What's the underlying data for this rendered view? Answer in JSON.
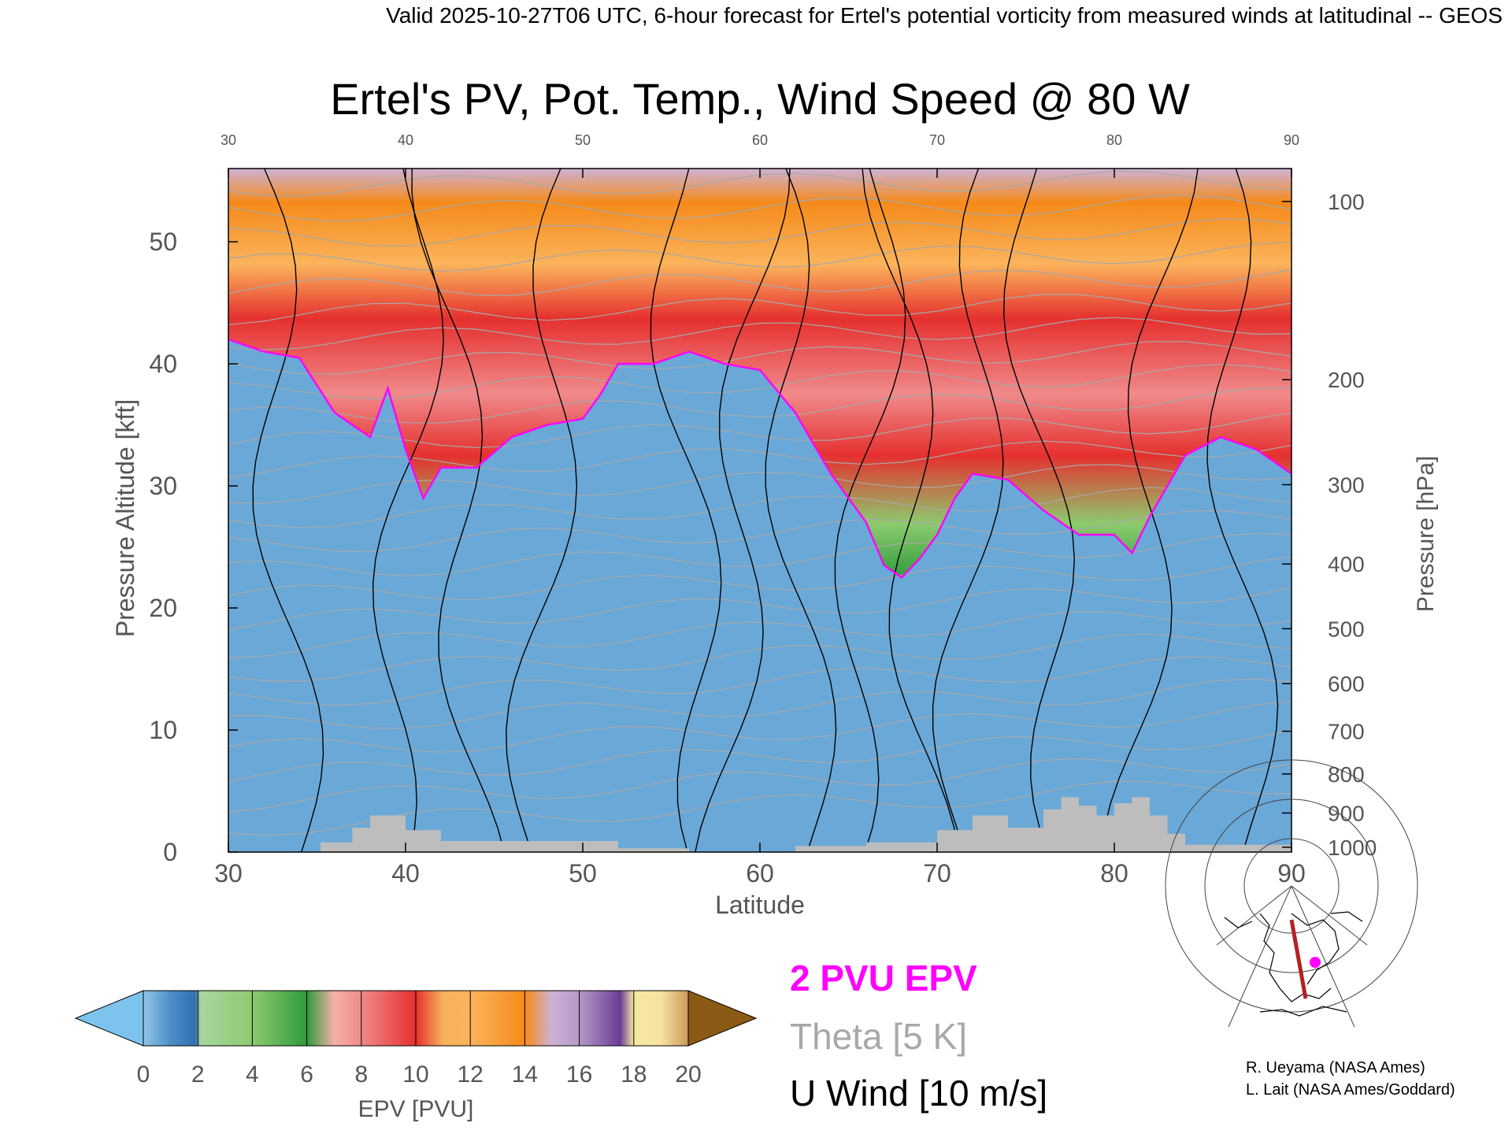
{
  "header": {
    "valid_line": "Valid 2025-10-27T06 UTC, 6-hour forecast for Ertel's potential vorticity from measured winds at latitudinal -- GEOS"
  },
  "chart_data": {
    "type": "heatmap",
    "title": "Ertel's PV, Pot. Temp., Wind Speed @ 80 W",
    "xlabel": "Latitude",
    "ylabel": "Pressure Altitude [kft]",
    "y2label": "Pressure [hPa]",
    "xlim": [
      30,
      90
    ],
    "ylim": [
      0,
      56
    ],
    "x_ticks": [
      30,
      40,
      50,
      60,
      70,
      80,
      90
    ],
    "y_ticks": [
      0,
      10,
      20,
      30,
      40,
      50
    ],
    "pressure_ticks": [
      {
        "label": "100",
        "kft": 53.3
      },
      {
        "label": "200",
        "kft": 38.7
      },
      {
        "label": "300",
        "kft": 30.1
      },
      {
        "label": "400",
        "kft": 23.6
      },
      {
        "label": "500",
        "kft": 18.3
      },
      {
        "label": "600",
        "kft": 13.8
      },
      {
        "label": "700",
        "kft": 9.9
      },
      {
        "label": "800",
        "kft": 6.4
      },
      {
        "label": "900",
        "kft": 3.2
      },
      {
        "label": "1000",
        "kft": 0.4
      }
    ],
    "tropopause_2pvu_kft": [
      [
        30,
        42
      ],
      [
        32,
        41
      ],
      [
        34,
        40.5
      ],
      [
        36,
        36
      ],
      [
        38,
        34
      ],
      [
        39,
        38
      ],
      [
        40,
        33
      ],
      [
        41,
        29
      ],
      [
        42,
        31.5
      ],
      [
        44,
        31.5
      ],
      [
        46,
        34
      ],
      [
        48,
        35
      ],
      [
        50,
        35.5
      ],
      [
        51,
        37.5
      ],
      [
        52,
        40
      ],
      [
        54,
        40
      ],
      [
        56,
        41
      ],
      [
        58,
        40
      ],
      [
        60,
        39.5
      ],
      [
        62,
        36
      ],
      [
        64,
        31
      ],
      [
        66,
        27
      ],
      [
        67,
        23.5
      ],
      [
        68,
        22.5
      ],
      [
        69,
        24
      ],
      [
        70,
        26
      ],
      [
        71,
        29
      ],
      [
        72,
        31
      ],
      [
        74,
        30.5
      ],
      [
        76,
        28
      ],
      [
        78,
        26
      ],
      [
        80,
        26
      ],
      [
        81,
        24.5
      ],
      [
        82,
        27.5
      ],
      [
        84,
        32.5
      ],
      [
        86,
        34
      ],
      [
        88,
        33
      ],
      [
        90,
        31
      ]
    ],
    "ground_kft": [
      [
        30,
        0
      ],
      [
        35.2,
        0
      ],
      [
        35.2,
        0.8
      ],
      [
        37,
        0.8
      ],
      [
        37,
        2
      ],
      [
        38,
        2
      ],
      [
        38,
        3
      ],
      [
        40,
        3
      ],
      [
        40,
        1.8
      ],
      [
        42,
        1.8
      ],
      [
        42,
        0.9
      ],
      [
        52,
        0.9
      ],
      [
        52,
        0.3
      ],
      [
        56,
        0.3
      ],
      [
        56,
        0
      ],
      [
        62,
        0
      ],
      [
        62,
        0.5
      ],
      [
        66,
        0.5
      ],
      [
        66,
        0.8
      ],
      [
        70,
        0.8
      ],
      [
        70,
        1.8
      ],
      [
        72,
        1.8
      ],
      [
        72,
        3
      ],
      [
        74,
        3
      ],
      [
        74,
        2
      ],
      [
        76,
        2
      ],
      [
        76,
        3.5
      ],
      [
        77,
        3.5
      ],
      [
        77,
        4.5
      ],
      [
        78,
        4.5
      ],
      [
        78,
        3.8
      ],
      [
        79,
        3.8
      ],
      [
        79,
        3
      ],
      [
        80,
        3
      ],
      [
        80,
        4
      ],
      [
        81,
        4
      ],
      [
        81,
        4.5
      ],
      [
        82,
        4.5
      ],
      [
        82,
        3
      ],
      [
        83,
        3
      ],
      [
        83,
        1.5
      ],
      [
        84,
        1.5
      ],
      [
        84,
        0.6
      ],
      [
        90,
        0.6
      ],
      [
        90,
        0
      ]
    ],
    "colorbar": {
      "label": "EPV [PVU]",
      "min": 0,
      "max": 20,
      "ticks": [
        "0",
        "2",
        "4",
        "6",
        "8",
        "10",
        "12",
        "14",
        "16",
        "18",
        "20"
      ],
      "under_color": "#7cc3ee",
      "over_color": "#8b5a14",
      "stops": [
        {
          "pvu": 0,
          "color": "#94c6e6"
        },
        {
          "pvu": 1,
          "color": "#4c8fc8"
        },
        {
          "pvu": 1.9,
          "color": "#2f70b2"
        },
        {
          "pvu": 2.1,
          "color": "#a9d6a0"
        },
        {
          "pvu": 4,
          "color": "#8ccb6e"
        },
        {
          "pvu": 6,
          "color": "#2f9a3c"
        },
        {
          "pvu": 7,
          "color": "#f4b1a8"
        },
        {
          "pvu": 8,
          "color": "#f08a8a"
        },
        {
          "pvu": 10,
          "color": "#e5302f"
        },
        {
          "pvu": 11,
          "color": "#f7b25a"
        },
        {
          "pvu": 12,
          "color": "#fbb45c"
        },
        {
          "pvu": 14,
          "color": "#f58a1a"
        },
        {
          "pvu": 15,
          "color": "#cdb2d6"
        },
        {
          "pvu": 16,
          "color": "#b599c7"
        },
        {
          "pvu": 17.5,
          "color": "#6a3d96"
        },
        {
          "pvu": 18,
          "color": "#f3e9a0"
        },
        {
          "pvu": 19,
          "color": "#f7e2a0"
        },
        {
          "pvu": 20,
          "color": "#cc9a5a"
        }
      ]
    },
    "legend": [
      {
        "text": "2 PVU EPV",
        "color": "#ff00ff"
      },
      {
        "text": "Theta [5 K]",
        "color": "#a8a8a8"
      },
      {
        "text": "U Wind [10 m/s]",
        "color": "#000000"
      }
    ],
    "colors": {
      "tropopause": "#ff00ff",
      "theta": "#a8a8a8",
      "wind": "#000000",
      "ground": "#bdbdbd"
    }
  },
  "inset_map": {
    "path_color": "#b22222",
    "marker_color": "#ff00ff"
  },
  "credits": [
    "R. Ueyama (NASA Ames)",
    "L. Lait (NASA Ames/Goddard)"
  ]
}
